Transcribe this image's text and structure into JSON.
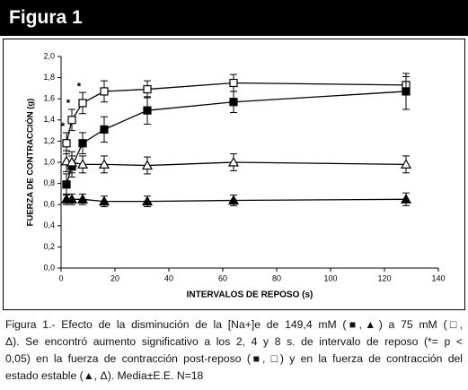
{
  "header": {
    "title": "Figura 1"
  },
  "chart_data": {
    "type": "line",
    "x_label": "INTERVALOS DE REPOSO (s)",
    "y_label": "FUERZA DE CONTRACCIÓN (g)",
    "x": [
      2,
      4,
      8,
      16,
      32,
      64,
      128
    ],
    "xlim": [
      0,
      140
    ],
    "xticks": [
      0,
      20,
      40,
      60,
      80,
      100,
      120,
      140
    ],
    "ylim": [
      0,
      2
    ],
    "yticks": [
      {
        "value": 0,
        "label": "0,0"
      },
      {
        "value": 0.2,
        "label": "0,2"
      },
      {
        "value": 0.4,
        "label": "0,4"
      },
      {
        "value": 0.6,
        "label": "0,6"
      },
      {
        "value": 0.8,
        "label": "0,8"
      },
      {
        "value": 1,
        "label": "1,0"
      },
      {
        "value": 1.2,
        "label": "1,2"
      },
      {
        "value": 1.4,
        "label": "1,4"
      },
      {
        "value": 1.6,
        "label": "1,6"
      },
      {
        "value": 1.8,
        "label": "1,8"
      },
      {
        "value": 2,
        "label": "2,0"
      }
    ],
    "series": [
      {
        "marker": "square",
        "filled": false,
        "color": "#000000",
        "values": [
          1.18,
          1.4,
          1.56,
          1.67,
          1.69,
          1.75,
          1.73
        ],
        "errors": [
          0.1,
          0.1,
          0.1,
          0.1,
          0.08,
          0.08,
          0.08
        ]
      },
      {
        "marker": "square",
        "filled": true,
        "color": "#000000",
        "values": [
          0.79,
          0.96,
          1.18,
          1.31,
          1.49,
          1.57,
          1.67
        ],
        "errors": [
          0.1,
          0.1,
          0.1,
          0.12,
          0.13,
          0.1,
          0.17
        ]
      },
      {
        "marker": "triangle",
        "filled": false,
        "color": "#000000",
        "values": [
          1.01,
          1.0,
          0.98,
          0.98,
          0.97,
          1.0,
          0.98
        ],
        "errors": [
          0.1,
          0.1,
          0.08,
          0.08,
          0.08,
          0.08,
          0.08
        ]
      },
      {
        "marker": "triangle",
        "filled": true,
        "color": "#000000",
        "values": [
          0.65,
          0.65,
          0.65,
          0.63,
          0.63,
          0.64,
          0.65
        ],
        "errors": [
          0.05,
          0.05,
          0.05,
          0.05,
          0.05,
          0.05,
          0.06
        ]
      }
    ],
    "annotations": [
      "*",
      "*",
      "*"
    ]
  },
  "caption": {
    "lines": [
      "Figura 1.- Efecto de la disminución de la [Na+]e de 149,4 mM (■,▲) a 75 mM (□,",
      "Δ). Se encontró aumento significativo a los 2, 4 y 8 s. de intervalo de reposo (*= p <",
      "0,05) en la fuerza de contracción post-reposo (■, □) y en la fuerza de contracción del",
      "estado estable (▲, Δ). Media±E.E. N=18"
    ]
  }
}
